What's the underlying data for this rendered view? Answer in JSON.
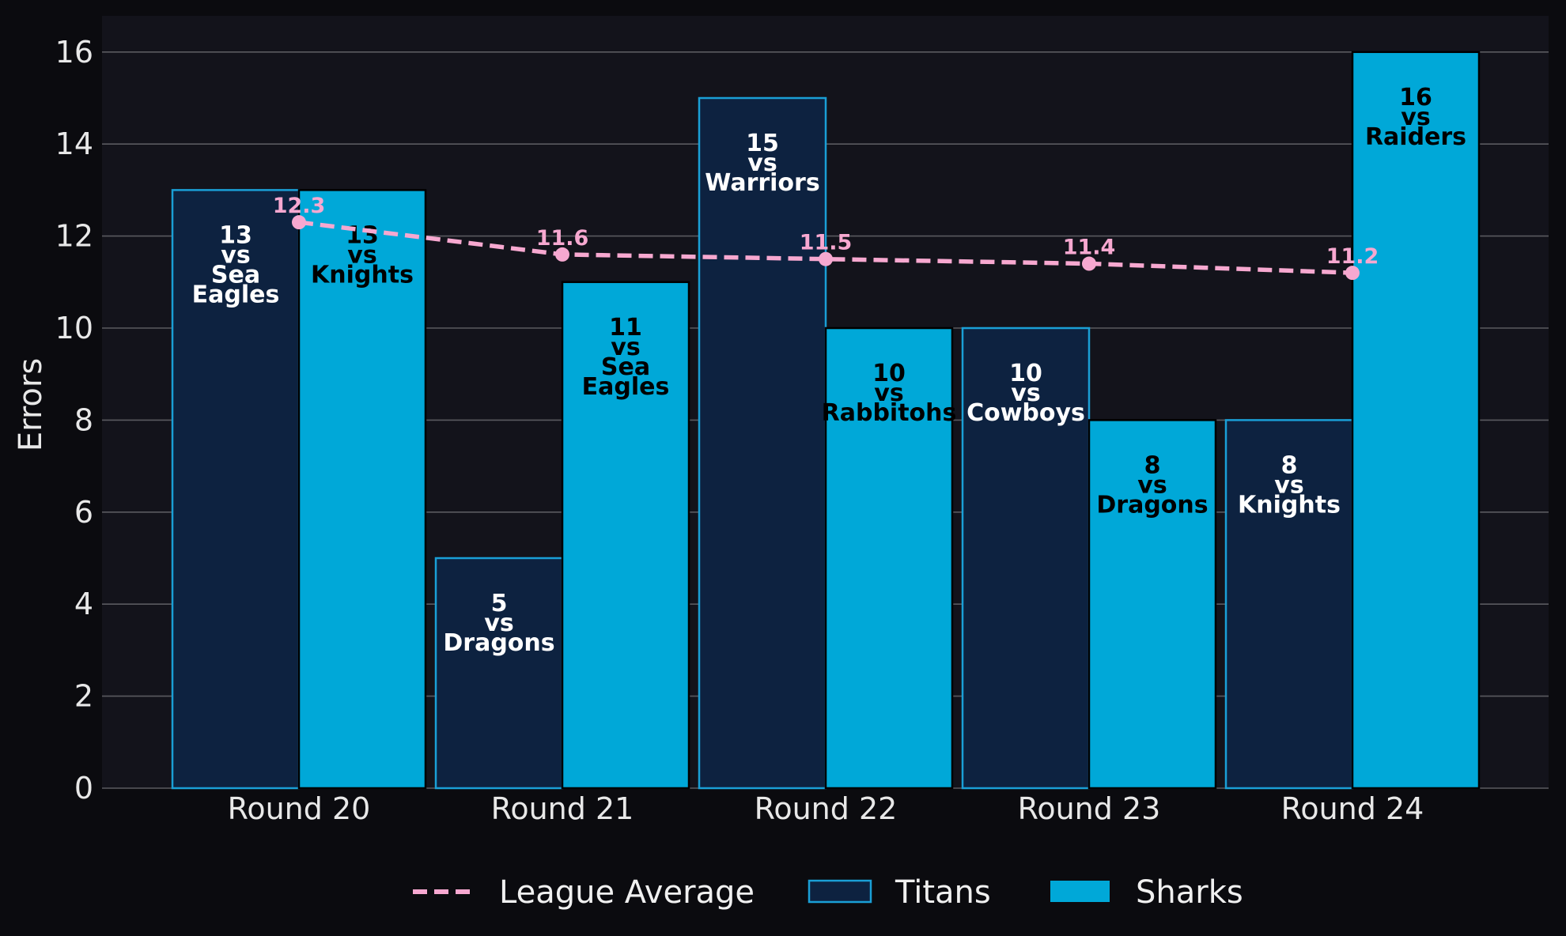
{
  "colors": {
    "page_bg": "#0b0b0f",
    "plot_bg": "#13131b",
    "grid": "#5a5a60",
    "titans_fill": "#0d2240",
    "titans_edge": "#1a9fd6",
    "sharks_fill": "#00a8d8",
    "sharks_edge": "#000000",
    "average_line": "#f7a8d0",
    "text": "#e8e8e8"
  },
  "chart_data": {
    "type": "bar",
    "title": "",
    "xlabel": "",
    "ylabel": "Errors",
    "ylim": [
      0,
      16.8
    ],
    "yticks": [
      0,
      2,
      4,
      6,
      8,
      10,
      12,
      14,
      16
    ],
    "grid": "horizontal",
    "legend_position": "bottom",
    "categories": [
      "Round 20",
      "Round 21",
      "Round 22",
      "Round 23",
      "Round 24"
    ],
    "series": [
      {
        "name": "Titans",
        "type": "bar",
        "values": [
          13,
          5,
          15,
          10,
          8
        ],
        "opponents": [
          "Sea Eagles",
          "Dragons",
          "Warriors",
          "Cowboys",
          "Knights"
        ]
      },
      {
        "name": "Sharks",
        "type": "bar",
        "values": [
          13,
          11,
          10,
          8,
          16
        ],
        "opponents": [
          "Knights",
          "Sea Eagles",
          "Rabbitohs",
          "Dragons",
          "Raiders"
        ]
      },
      {
        "name": "League Average",
        "type": "line",
        "style": "dashed",
        "values": [
          12.3,
          11.6,
          11.5,
          11.4,
          11.2
        ]
      }
    ]
  }
}
